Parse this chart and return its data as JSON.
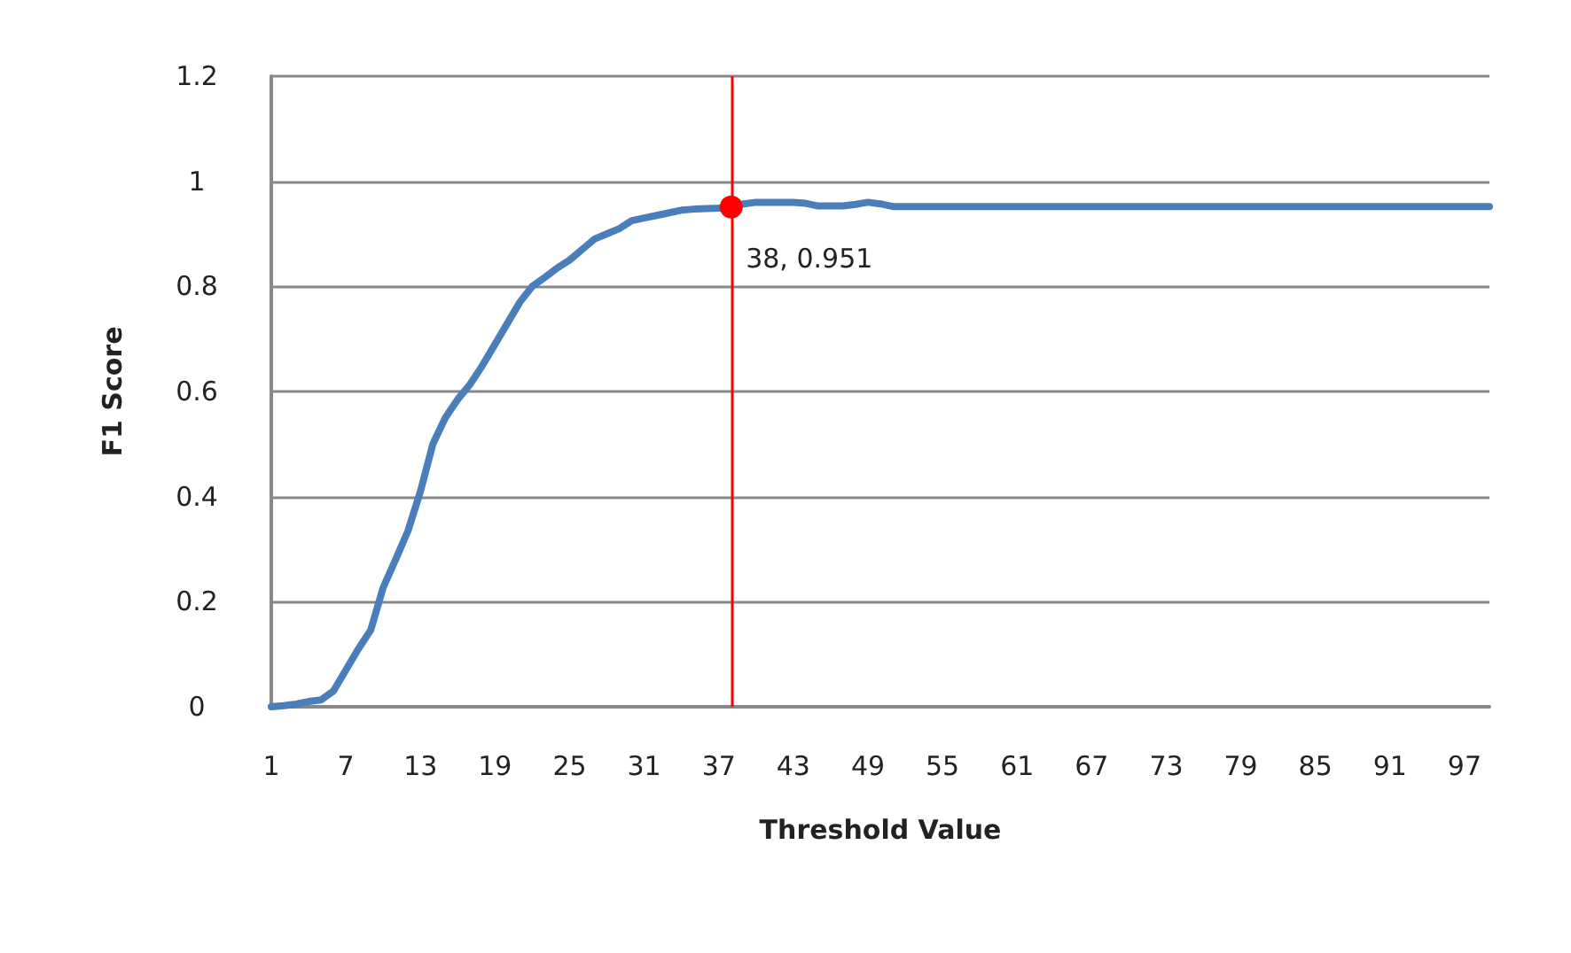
{
  "chart_data": {
    "type": "line",
    "xlabel": "Threshold Value",
    "ylabel": "F1 Score",
    "x": [
      1,
      2,
      3,
      4,
      5,
      6,
      7,
      8,
      9,
      10,
      11,
      12,
      13,
      14,
      15,
      16,
      17,
      18,
      19,
      20,
      21,
      22,
      23,
      24,
      25,
      26,
      27,
      28,
      29,
      30,
      31,
      32,
      33,
      34,
      35,
      36,
      37,
      38,
      39,
      40,
      41,
      42,
      43,
      44,
      45,
      46,
      47,
      48,
      49,
      50,
      51,
      52,
      53,
      54,
      55,
      56,
      57,
      58,
      59,
      60,
      61,
      62,
      63,
      64,
      65,
      66,
      67,
      68,
      69,
      70,
      71,
      72,
      73,
      74,
      75,
      76,
      77,
      78,
      79,
      80,
      81,
      82,
      83,
      84,
      85,
      86,
      87,
      88,
      89,
      90,
      91,
      92,
      93,
      94,
      95,
      96,
      97,
      98,
      99
    ],
    "series": [
      {
        "color": "#4a7ebb",
        "values": [
          0,
          0.002,
          0.005,
          0.01,
          0.013,
          0.03,
          0.07,
          0.11,
          0.146,
          0.227,
          0.28,
          0.335,
          0.41,
          0.5,
          0.55,
          0.585,
          0.614,
          0.65,
          0.69,
          0.73,
          0.77,
          0.8,
          0.817,
          0.835,
          0.85,
          0.87,
          0.89,
          0.9,
          0.91,
          0.925,
          0.93,
          0.935,
          0.94,
          0.945,
          0.947,
          0.948,
          0.949,
          0.951,
          0.957,
          0.96,
          0.96,
          0.96,
          0.96,
          0.958,
          0.953,
          0.953,
          0.953,
          0.956,
          0.96,
          0.957,
          0.952,
          0.952,
          0.952,
          0.952,
          0.952,
          0.952,
          0.952,
          0.952,
          0.952,
          0.952,
          0.952,
          0.952,
          0.952,
          0.952,
          0.952,
          0.952,
          0.952,
          0.952,
          0.952,
          0.952,
          0.952,
          0.952,
          0.952,
          0.952,
          0.952,
          0.952,
          0.952,
          0.952,
          0.952,
          0.952,
          0.952,
          0.952,
          0.952,
          0.952,
          0.952,
          0.952,
          0.952,
          0.952,
          0.952,
          0.952,
          0.952,
          0.952,
          0.952,
          0.952,
          0.952,
          0.952,
          0.952,
          0.952,
          0.952
        ]
      }
    ],
    "xlim": [
      1,
      99
    ],
    "xticks": [
      1,
      7,
      13,
      19,
      25,
      31,
      37,
      43,
      49,
      55,
      61,
      67,
      73,
      79,
      85,
      91,
      97
    ],
    "ylim": [
      0,
      1.2
    ],
    "yticks": [
      0,
      0.2,
      0.4,
      0.6,
      0.8,
      1,
      1.2
    ],
    "grid": "y",
    "ref_lines": [
      {
        "axis": "x",
        "value": 38,
        "color": "#ff0000"
      }
    ],
    "annotations": [
      {
        "text": "38, 0.951",
        "x": 38,
        "y": 0.951
      }
    ]
  }
}
